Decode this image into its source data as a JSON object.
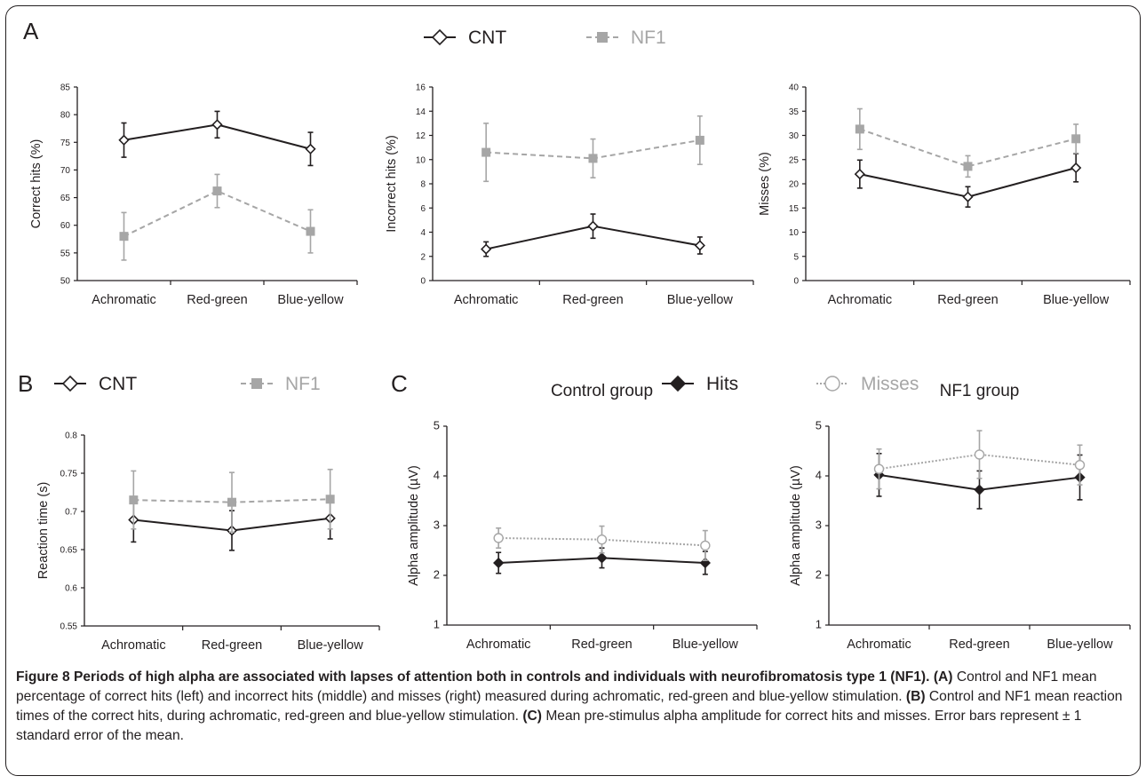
{
  "panel_letters": {
    "a": "A",
    "b": "B",
    "c": "C"
  },
  "legends": {
    "ab": [
      {
        "label": "CNT",
        "color": "#231f20",
        "marker": "diamond-open",
        "dash": false
      },
      {
        "label": "NF1",
        "color": "#a6a6a6",
        "marker": "square-filled",
        "dash": true
      }
    ],
    "c": [
      {
        "label": "Hits",
        "color": "#231f20",
        "marker": "diamond-filled",
        "dash": false
      },
      {
        "label": "Misses",
        "color": "#a6a6a6",
        "marker": "circle-open",
        "dash": true
      }
    ]
  },
  "chart_data": [
    {
      "id": "a1",
      "type": "line",
      "categories": [
        "Achromatic",
        "Red-green",
        "Blue-yellow"
      ],
      "title": "",
      "xlabel": "",
      "ylabel": "Correct hits (%)",
      "ylim": [
        50,
        85
      ],
      "yticks": [
        50,
        55,
        60,
        65,
        70,
        75,
        80,
        85
      ],
      "tick_decimals": 0,
      "series": [
        {
          "name": "CNT",
          "values": [
            75.4,
            78.2,
            73.8
          ],
          "error": [
            3.1,
            2.4,
            3.0
          ]
        },
        {
          "name": "NF1",
          "values": [
            58.0,
            66.2,
            58.9
          ],
          "error": [
            4.3,
            3.0,
            3.9
          ]
        }
      ]
    },
    {
      "id": "a2",
      "type": "line",
      "categories": [
        "Achromatic",
        "Red-green",
        "Blue-yellow"
      ],
      "title": "",
      "xlabel": "",
      "ylabel": "Incorrect hits (%)",
      "ylim": [
        0,
        16
      ],
      "yticks": [
        0,
        2,
        4,
        6,
        8,
        10,
        12,
        14,
        16
      ],
      "tick_decimals": 0,
      "series": [
        {
          "name": "CNT",
          "values": [
            2.6,
            4.5,
            2.9
          ],
          "error": [
            0.6,
            1.0,
            0.7
          ]
        },
        {
          "name": "NF1",
          "values": [
            10.6,
            10.1,
            11.6
          ],
          "error": [
            2.4,
            1.6,
            2.0
          ]
        }
      ]
    },
    {
      "id": "a3",
      "type": "line",
      "categories": [
        "Achromatic",
        "Red-green",
        "Blue-yellow"
      ],
      "title": "",
      "xlabel": "",
      "ylabel": "Misses (%)",
      "ylim": [
        0,
        40
      ],
      "yticks": [
        0,
        5,
        10,
        15,
        20,
        25,
        30,
        35,
        40
      ],
      "tick_decimals": 0,
      "series": [
        {
          "name": "CNT",
          "values": [
            22.0,
            17.3,
            23.3
          ],
          "error": [
            2.9,
            2.1,
            2.9
          ]
        },
        {
          "name": "NF1",
          "values": [
            31.3,
            23.6,
            29.3
          ],
          "error": [
            4.2,
            2.2,
            3.0
          ]
        }
      ]
    },
    {
      "id": "b",
      "type": "line",
      "categories": [
        "Achromatic",
        "Red-green",
        "Blue-yellow"
      ],
      "title": "",
      "xlabel": "",
      "ylabel": "Reaction time (s)",
      "ylim": [
        0.55,
        0.8
      ],
      "yticks": [
        0.55,
        0.6,
        0.65,
        0.7,
        0.75,
        0.8
      ],
      "tick_format": "trim",
      "series": [
        {
          "name": "CNT",
          "values": [
            0.689,
            0.675,
            0.691
          ],
          "error": [
            0.029,
            0.026,
            0.027
          ]
        },
        {
          "name": "NF1",
          "values": [
            0.715,
            0.712,
            0.716
          ],
          "error": [
            0.038,
            0.039,
            0.039
          ]
        }
      ]
    },
    {
      "id": "c1",
      "type": "line",
      "categories": [
        "Achromatic",
        "Red-green",
        "Blue-yellow"
      ],
      "title": "Control group",
      "xlabel": "",
      "ylabel": "Alpha amplitude (µV)",
      "ylim": [
        1,
        5
      ],
      "yticks": [
        1,
        2,
        3,
        4,
        5
      ],
      "tick_decimals": 0,
      "series": [
        {
          "name": "Hits",
          "values": [
            2.25,
            2.35,
            2.25
          ],
          "error": [
            0.21,
            0.2,
            0.23
          ]
        },
        {
          "name": "Misses",
          "values": [
            2.75,
            2.72,
            2.6
          ],
          "error": [
            0.2,
            0.27,
            0.3
          ]
        }
      ]
    },
    {
      "id": "c2",
      "type": "line",
      "categories": [
        "Achromatic",
        "Red-green",
        "Blue-yellow"
      ],
      "title": "NF1 group",
      "xlabel": "",
      "ylabel": "Alpha amplitude (µV)",
      "ylim": [
        1,
        5
      ],
      "yticks": [
        1,
        2,
        3,
        4,
        5
      ],
      "tick_decimals": 0,
      "series": [
        {
          "name": "Hits",
          "values": [
            4.02,
            3.72,
            3.97
          ],
          "error": [
            0.43,
            0.38,
            0.45
          ]
        },
        {
          "name": "Misses",
          "values": [
            4.14,
            4.43,
            4.22
          ],
          "error": [
            0.4,
            0.48,
            0.4
          ]
        }
      ]
    }
  ],
  "caption": {
    "title": "Figure 8 Periods of high alpha are associated with lapses of attention both in controls and individuals with neurofibromatosis type 1 (NF1).",
    "label_a": "(A)",
    "text_a": "Control and NF1 mean percentage of correct hits (left) and incorrect hits (middle) and misses (right) measured during achromatic, red-green and blue-yellow stimulation.",
    "label_b": "(B)",
    "text_b": "Control and NF1 mean reaction times of the correct hits, during achromatic, red-green and blue-yellow stimulation.",
    "label_c": "(C)",
    "text_c": "Mean pre-stimulus alpha amplitude for correct hits and misses. Error bars represent ± 1 standard error of the mean."
  }
}
